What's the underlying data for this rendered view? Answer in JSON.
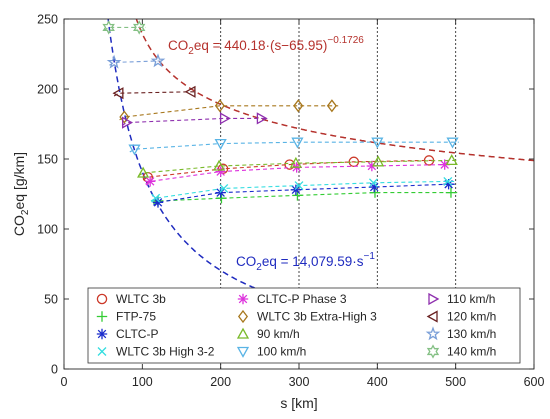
{
  "chart_data": {
    "type": "scatter",
    "xlabel": "s [km]",
    "ylabel_main": "CO",
    "ylabel_sub": "2",
    "ylabel_rest": "eq [g/km]",
    "xlim": [
      0,
      600
    ],
    "ylim": [
      0,
      250
    ],
    "x_ticks": [
      0,
      100,
      200,
      300,
      400,
      500,
      600
    ],
    "y_ticks": [
      0,
      50,
      100,
      150,
      200,
      250
    ],
    "grid": "vertical dotted lines at 200, 300, 400, 500",
    "grid_x": [
      200,
      300,
      400,
      500
    ],
    "legend_position": "bottom, 3 columns",
    "annotations": [
      {
        "id": "upper",
        "color": "#b5322d",
        "pre": "CO",
        "sub": "2",
        "mid": "eq = 440.18·(s−65.95)",
        "sup": "−0.1726"
      },
      {
        "id": "lower",
        "color": "#1f2bbf",
        "pre": "CO",
        "sub": "2",
        "mid": "eq = 14,079.59·s",
        "sup": "−1"
      }
    ],
    "envelope_curves": [
      {
        "id": "upper",
        "formula": "440.18*(s-65.95)^-0.1726",
        "color": "#b5322d",
        "x_range": [
          80,
          600
        ]
      },
      {
        "id": "lower",
        "formula": "14079.59/s",
        "color": "#1f2bbf",
        "x_range": [
          56,
          550
        ]
      }
    ],
    "series": [
      {
        "name": "WLTC 3b",
        "marker": "circle",
        "color": "#cc3a2a",
        "x": [
          107,
          203,
          288,
          370,
          466
        ],
        "y": [
          137,
          143,
          146,
          148,
          149
        ]
      },
      {
        "name": "FTP-75",
        "marker": "plus",
        "color": "#33cc33",
        "x": [
          120,
          201,
          298,
          397,
          494
        ],
        "y": [
          120,
          122,
          124,
          126,
          126
        ]
      },
      {
        "name": "CLTC-P",
        "marker": "asterisk",
        "color": "#1a2ccc",
        "x": [
          120,
          200,
          296,
          396,
          491
        ],
        "y": [
          119,
          126,
          128,
          130,
          132
        ]
      },
      {
        "name": "WLTC 3b High 3-2",
        "marker": "x",
        "color": "#33dde0",
        "x": [
          117,
          204,
          300,
          395,
          490
        ],
        "y": [
          122,
          129,
          131,
          133,
          134
        ]
      },
      {
        "name": "CLTC-P Phase 3",
        "marker": "asterisk",
        "color": "#dd33dd",
        "x": [
          110,
          200,
          297,
          393,
          486
        ],
        "y": [
          134,
          141,
          144,
          145,
          146
        ]
      },
      {
        "name": "WLTC 3b Extra-High 3",
        "marker": "diamond",
        "color": "#a8781e",
        "x": [
          77,
          199,
          299,
          342
        ],
        "y": [
          180,
          188,
          188,
          188
        ]
      },
      {
        "name": "90 km/h",
        "marker": "triangle-up",
        "color": "#7aba2a",
        "x": [
          101,
          198,
          296,
          401,
          495
        ],
        "y": [
          140,
          145,
          147,
          148,
          149
        ]
      },
      {
        "name": "100 km/h",
        "marker": "triangle-down",
        "color": "#5ab4e5",
        "x": [
          90,
          200,
          298,
          400,
          496
        ],
        "y": [
          157,
          161,
          162,
          162,
          162
        ]
      },
      {
        "name": "110 km/h",
        "marker": "triangle-right",
        "color": "#8e2fae",
        "x": [
          80,
          205,
          252
        ],
        "y": [
          176,
          179,
          179
        ]
      },
      {
        "name": "120 km/h",
        "marker": "triangle-left",
        "color": "#6a2222",
        "x": [
          70,
          162
        ],
        "y": [
          197,
          198
        ]
      },
      {
        "name": "130 km/h",
        "marker": "pentagram",
        "color": "#7a9fd8",
        "x": [
          64,
          120
        ],
        "y": [
          219,
          220
        ]
      },
      {
        "name": "140 km/h",
        "marker": "hexagram",
        "color": "#84c084",
        "x": [
          57,
          96
        ],
        "y": [
          244,
          244
        ]
      }
    ]
  }
}
